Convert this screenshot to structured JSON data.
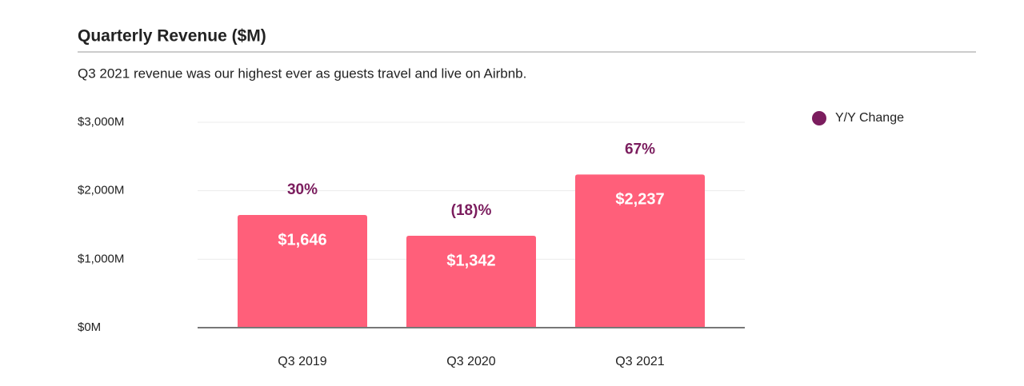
{
  "chart_data": {
    "type": "bar",
    "title": "Quarterly Revenue ($M)",
    "subtitle": "Q3 2021 revenue was our highest ever as guests travel and live on Airbnb.",
    "categories": [
      "Q3 2019",
      "Q3 2020",
      "Q3 2021"
    ],
    "values": [
      1646,
      1342,
      2237
    ],
    "value_labels": [
      "$1,646",
      "$1,342",
      "$2,237"
    ],
    "color": "#ff5f7a",
    "series": [
      {
        "name": "Y/Y Change",
        "color": "#7b1d5e",
        "values": [
          30,
          -18,
          67
        ],
        "value_labels": [
          "30%",
          "(18)%",
          "67%"
        ]
      }
    ],
    "ylim": [
      0,
      3000
    ],
    "yticks": [
      {
        "value": 0,
        "label": "$0M"
      },
      {
        "value": 1000,
        "label": "$1,000M"
      },
      {
        "value": 2000,
        "label": "$2,000M"
      },
      {
        "value": 3000,
        "label": "$3,000M"
      }
    ],
    "grid": true,
    "legend": "top-right"
  }
}
